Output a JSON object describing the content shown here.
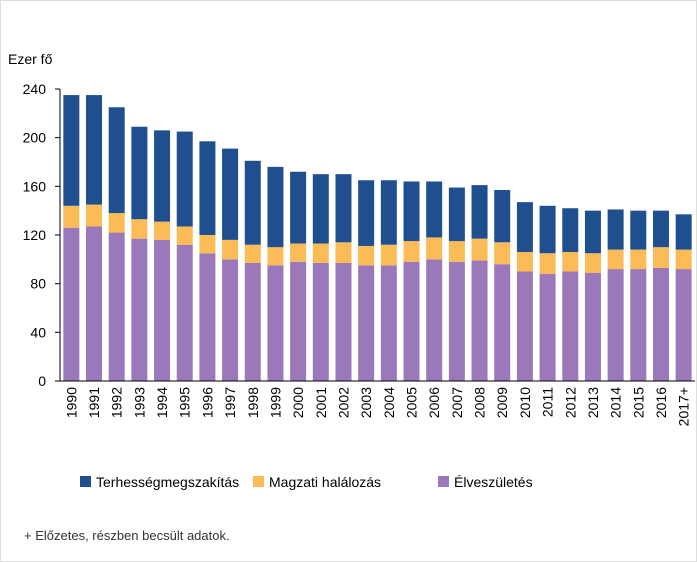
{
  "chart_data": {
    "type": "stacked_bar",
    "y_label": "Ezer fő",
    "categories": [
      "1990",
      "1991",
      "1992",
      "1993",
      "1994",
      "1995",
      "1996",
      "1997",
      "1998",
      "1999",
      "2000",
      "2001",
      "2002",
      "2003",
      "2004",
      "2005",
      "2006",
      "2007",
      "2008",
      "2009",
      "2010",
      "2011",
      "2012",
      "2013",
      "2014",
      "2015",
      "2016",
      "2017+"
    ],
    "series": [
      {
        "name": "Élveszületés",
        "color": "#9b78b9",
        "values": [
          126,
          127,
          122,
          117,
          116,
          112,
          105,
          100,
          97,
          95,
          98,
          97,
          97,
          95,
          95,
          98,
          100,
          98,
          99,
          96,
          90,
          88,
          90,
          89,
          92,
          92,
          93,
          92
        ]
      },
      {
        "name": "Magzati halálozás",
        "color": "#fbbb56",
        "values": [
          18,
          18,
          16,
          16,
          15,
          15,
          15,
          16,
          15,
          15,
          15,
          16,
          17,
          16,
          17,
          17,
          18,
          17,
          18,
          18,
          16,
          17,
          16,
          16,
          16,
          16,
          17,
          16
        ]
      },
      {
        "name": "Terhességmegszakítás",
        "color": "#1f4f8f",
        "values": [
          91,
          90,
          87,
          76,
          75,
          78,
          77,
          75,
          69,
          66,
          59,
          57,
          56,
          54,
          53,
          49,
          46,
          44,
          44,
          43,
          41,
          39,
          36,
          35,
          33,
          32,
          30,
          29
        ]
      }
    ],
    "legend_order": [
      "Terhességmegszakítás",
      "Magzati halálozás",
      "Élveszületés"
    ],
    "ylim": [
      0,
      240
    ],
    "yticks": [
      0,
      40,
      80,
      120,
      160,
      200,
      240
    ],
    "grid": false,
    "footnote": "+ Előzetes, részben becsült adatok."
  }
}
